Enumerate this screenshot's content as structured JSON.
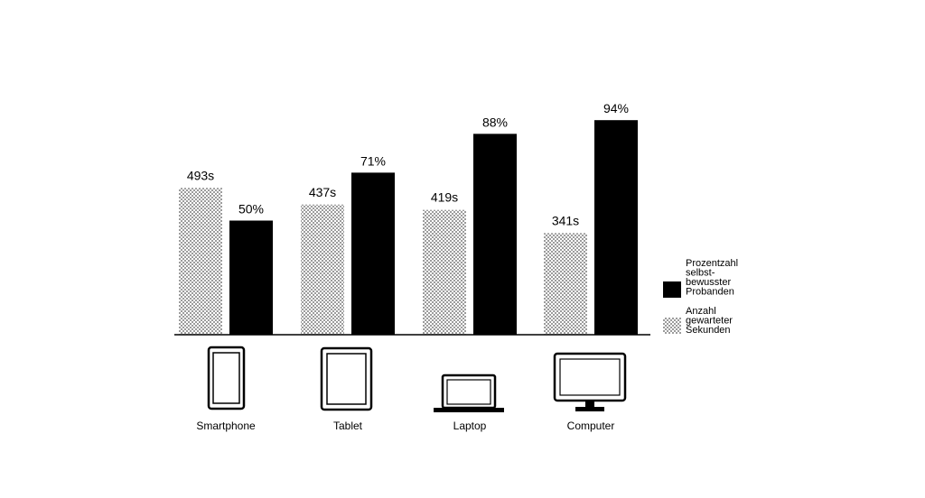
{
  "chart_data": {
    "type": "bar",
    "categories": [
      "Smartphone",
      "Tablet",
      "Laptop",
      "Computer"
    ],
    "category_icons": [
      "smartphone-icon",
      "tablet-icon",
      "laptop-icon",
      "computer-icon"
    ],
    "series": [
      {
        "name": "Anzahl gewarteter Sekunden",
        "legend_lines": [
          "Anzahl",
          "gewarteter",
          "Sekunden"
        ],
        "fill": "dotted",
        "values": [
          493,
          437,
          419,
          341
        ],
        "labels": [
          "493s",
          "437s",
          "419s",
          "341s"
        ],
        "ylim": [
          0,
          800
        ]
      },
      {
        "name": "Prozentzahl selbstbewusster Probanden",
        "legend_lines": [
          "Prozentzahl",
          "selbst-",
          "bewusster",
          "Probanden"
        ],
        "fill": "#000000",
        "values": [
          50,
          71,
          88,
          94
        ],
        "labels": [
          "50%",
          "71%",
          "88%",
          "94%"
        ],
        "ylim": [
          0,
          100
        ]
      }
    ],
    "legend_position": "right",
    "grid": false,
    "colors": {
      "bar": "#000000",
      "pattern_dot": "#555555"
    }
  }
}
